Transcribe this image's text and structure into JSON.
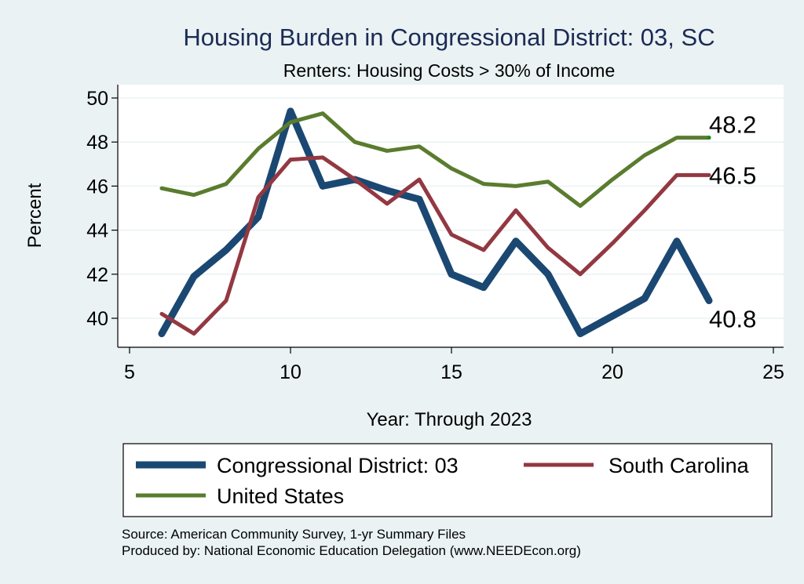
{
  "chart_data": {
    "type": "line",
    "title": "Housing Burden in Congressional District:  03, SC",
    "subtitle": "Renters: Housing Costs > 30% of Income",
    "xlabel": "Year: Through 2023",
    "ylabel": "Percent",
    "xlim": [
      5,
      25
    ],
    "ylim": [
      39,
      50.5
    ],
    "xticks": [
      5,
      10,
      15,
      20,
      25
    ],
    "yticks": [
      40,
      42,
      44,
      46,
      48,
      50
    ],
    "grid": true,
    "legend_position": "bottom",
    "x": [
      6,
      7,
      8,
      9,
      10,
      11,
      12,
      13,
      14,
      15,
      16,
      17,
      18,
      19,
      20,
      21,
      22,
      23
    ],
    "series": [
      {
        "name": "Congressional District:  03",
        "color": "#1b4872",
        "values": [
          39.3,
          41.9,
          43.1,
          44.6,
          49.4,
          46.0,
          46.3,
          45.8,
          45.4,
          42.0,
          41.4,
          43.5,
          42.0,
          39.3,
          40.1,
          40.9,
          43.5,
          40.8
        ],
        "end_label": "40.8"
      },
      {
        "name": "South Carolina",
        "color": "#933841",
        "values": [
          40.2,
          39.3,
          40.8,
          45.5,
          47.2,
          47.3,
          46.3,
          45.2,
          46.3,
          43.8,
          43.1,
          44.9,
          43.2,
          42.0,
          43.4,
          44.9,
          46.5,
          46.5
        ],
        "end_label": "46.5"
      },
      {
        "name": "United States",
        "color": "#5a7c2e",
        "values": [
          45.9,
          45.6,
          46.1,
          47.7,
          48.9,
          49.3,
          48.0,
          47.6,
          47.8,
          46.8,
          46.1,
          46.0,
          46.2,
          45.1,
          46.3,
          47.4,
          48.2,
          48.2
        ],
        "end_label": "48.2"
      }
    ],
    "notes": [
      "Source: American Community Survey, 1-yr Summary Files",
      "Produced by: National Economic Education Delegation (www.NEEDEcon.org)"
    ]
  }
}
